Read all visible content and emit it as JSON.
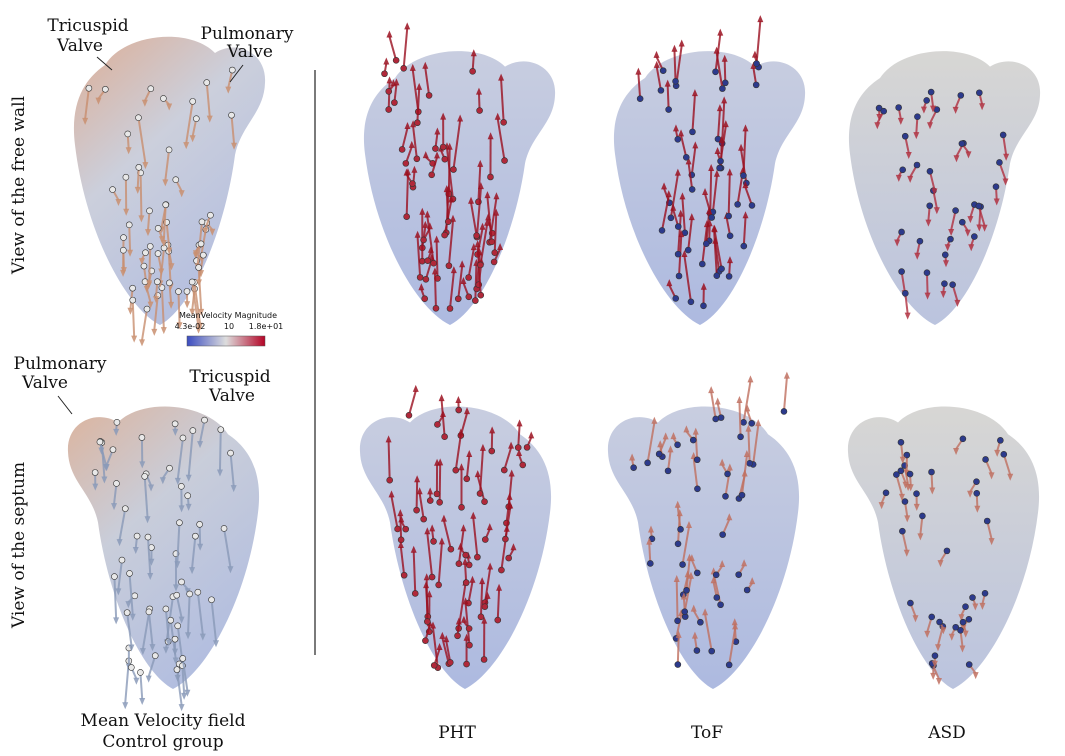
{
  "annotations": {
    "top_tricuspid": [
      "Tricuspid",
      "Valve"
    ],
    "top_pulmonary": [
      "Pulmonary",
      "Valve"
    ],
    "bottom_pulmonary": [
      "Pulmonary",
      "Valve"
    ],
    "bottom_tricuspid": [
      "Tricuspid",
      "Valve"
    ]
  },
  "row_labels": [
    "View of the free wall",
    "View of the septum"
  ],
  "colorbar": {
    "title": "MeanVelocity Magnitude",
    "labels": [
      "4.3e-02",
      "10",
      "1.8e+01"
    ]
  },
  "captions": {
    "control": [
      "Mean Velocity field",
      "Control group"
    ],
    "columns": [
      "PHT",
      "ToF",
      "ASD"
    ]
  }
}
